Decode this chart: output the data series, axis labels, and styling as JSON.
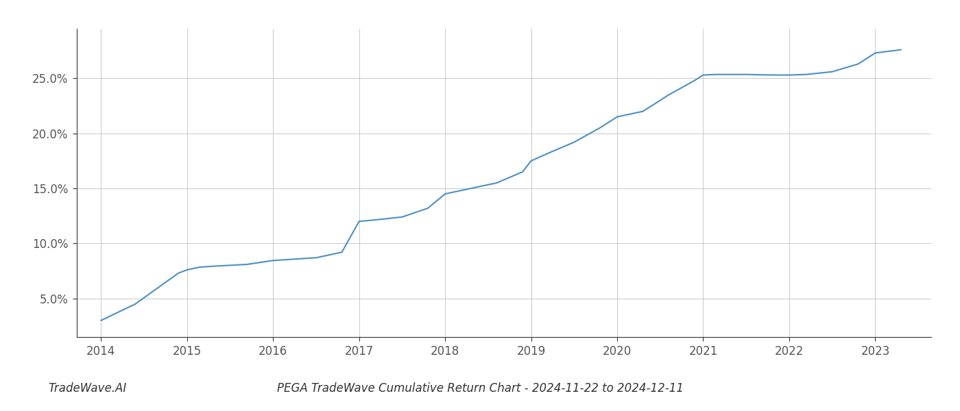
{
  "x_years": [
    2014.0,
    2014.4,
    2014.9,
    2015.0,
    2015.15,
    2015.35,
    2015.7,
    2016.0,
    2016.2,
    2016.5,
    2016.8,
    2017.0,
    2017.2,
    2017.5,
    2017.8,
    2018.0,
    2018.3,
    2018.6,
    2018.9,
    2019.0,
    2019.2,
    2019.5,
    2019.8,
    2020.0,
    2020.3,
    2020.6,
    2020.9,
    2021.0,
    2021.15,
    2021.5,
    2021.8,
    2022.0,
    2022.2,
    2022.5,
    2022.8,
    2023.0,
    2023.3
  ],
  "y_values": [
    3.0,
    4.5,
    7.3,
    7.6,
    7.85,
    7.95,
    8.1,
    8.45,
    8.55,
    8.7,
    9.2,
    12.0,
    12.15,
    12.4,
    13.2,
    14.5,
    15.0,
    15.5,
    16.5,
    17.5,
    18.2,
    19.2,
    20.5,
    21.5,
    22.0,
    23.5,
    24.8,
    25.3,
    25.35,
    25.35,
    25.3,
    25.3,
    25.35,
    25.6,
    26.3,
    27.3,
    27.6
  ],
  "line_color": "#4a90c4",
  "line_width": 1.5,
  "background_color": "#ffffff",
  "grid_color": "#c8c8c8",
  "title": "PEGA TradeWave Cumulative Return Chart - 2024-11-22 to 2024-12-11",
  "watermark": "TradeWave.AI",
  "x_ticks": [
    2014,
    2015,
    2016,
    2017,
    2018,
    2019,
    2020,
    2021,
    2022,
    2023
  ],
  "y_ticks": [
    5.0,
    10.0,
    15.0,
    20.0,
    25.0
  ],
  "y_tick_labels": [
    "5.0%",
    "10.0%",
    "15.0%",
    "20.0%",
    "25.0%"
  ],
  "xlim": [
    2013.72,
    2023.65
  ],
  "ylim": [
    1.5,
    29.5
  ],
  "tick_fontsize": 12,
  "title_fontsize": 12,
  "watermark_fontsize": 12
}
